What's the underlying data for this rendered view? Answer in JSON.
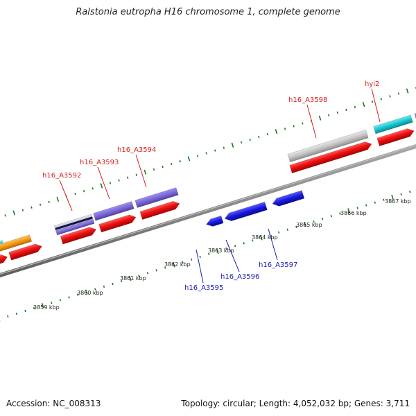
{
  "title": "Ralstonia eutropha H16 chromosome 1, complete genome",
  "footer": {
    "accession": "Accession: NC_008313",
    "summary": "Topology: circular; Length: 4,052,032 bp; Genes: 3,711"
  },
  "colors": {
    "backbone": "#8a8a8a",
    "tick": "#1a7a1a",
    "top_label": "#d61f1f",
    "bottom_label": "#1a1ab8",
    "cds": "#ee1111",
    "gray_gene": "#c4c4c4",
    "purple_gene": "#7b68d9",
    "cyan_gene": "#17c7cf",
    "orange_gene": "#f59a12",
    "blue_gene": "#1818e0",
    "navy_stripe": "#121258"
  },
  "ticks": [
    {
      "label": "3859 kbp"
    },
    {
      "label": "3860 kbp"
    },
    {
      "label": "3861 kbp"
    },
    {
      "label": "3862 kbp"
    },
    {
      "label": "3863 kbp"
    },
    {
      "label": "3864 kbp"
    },
    {
      "label": "3865 kbp"
    },
    {
      "label": "3866 kbp"
    },
    {
      "label": "3867 kbp"
    }
  ],
  "top_labels": [
    {
      "label": "h16_A3592"
    },
    {
      "label": "h16_A3593"
    },
    {
      "label": "h16_A3594"
    },
    {
      "label": "h16_A3598"
    },
    {
      "label": "hyi2"
    }
  ],
  "bottom_labels": [
    {
      "label": "h16_A3595"
    },
    {
      "label": "h16_A3596"
    },
    {
      "label": "h16_A3597"
    }
  ]
}
